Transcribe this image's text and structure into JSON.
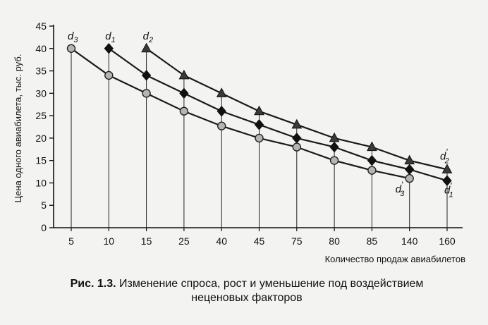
{
  "chart_data": {
    "type": "line",
    "categories": [
      "5",
      "10",
      "15",
      "25",
      "40",
      "45",
      "75",
      "80",
      "85",
      "140",
      "160"
    ],
    "ylabel": "Цена одного авиабилета, тыс. руб.",
    "xlabel": "Количество продаж авиабилетов",
    "ylim": [
      0,
      45
    ],
    "yticks": [
      0,
      5,
      10,
      15,
      20,
      25,
      30,
      35,
      40,
      45
    ],
    "grid": "vertical drop lines from points to x-axis",
    "series": [
      {
        "name": "d2",
        "marker": "triangle",
        "values": [
          null,
          null,
          40,
          34,
          30,
          26,
          23,
          20,
          18,
          15,
          13
        ],
        "start_label": {
          "main": "d",
          "sub": "2",
          "sup": ""
        },
        "end_label": {
          "main": "d",
          "sub": "2",
          "sup": "′"
        }
      },
      {
        "name": "d1",
        "marker": "diamond",
        "values": [
          null,
          40,
          34,
          30,
          26,
          23,
          20,
          18,
          15,
          13,
          10.5
        ],
        "start_label": {
          "main": "d",
          "sub": "1",
          "sup": ""
        },
        "end_label": {
          "main": "d",
          "sub": "1",
          "sup": "′"
        }
      },
      {
        "name": "d3",
        "marker": "circle",
        "values": [
          40,
          34,
          30,
          26,
          22.7,
          20,
          18,
          15,
          12.8,
          11,
          null
        ],
        "start_label": {
          "main": "d",
          "sub": "3",
          "sup": ""
        },
        "end_label": {
          "main": "d",
          "sub": "3",
          "sup": "′"
        }
      }
    ]
  },
  "caption": {
    "prefix": "Рис. 1.3.",
    "line1": " Изменение спроса, рост и уменьшение под воздействием",
    "line2": "неценовых факторов"
  }
}
